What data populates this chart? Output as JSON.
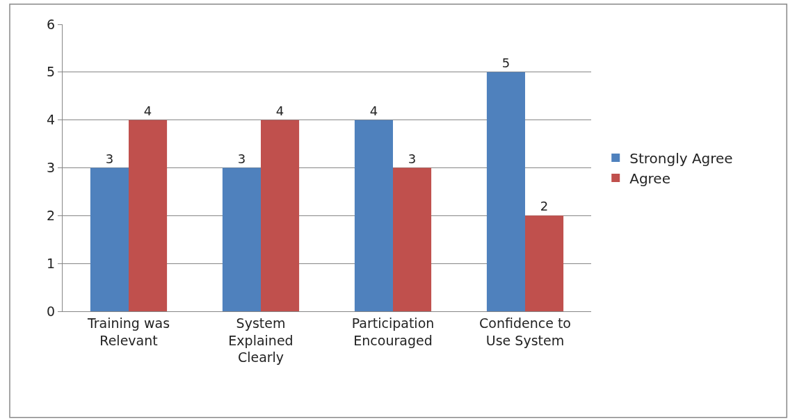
{
  "chart_data": {
    "type": "bar",
    "categories": [
      "Training was Relevant",
      "System Explained Clearly",
      "Participation Encouraged",
      "Confidence to Use System"
    ],
    "series": [
      {
        "name": "Strongly Agree",
        "color": "#4f81bd",
        "values": [
          3,
          3,
          4,
          5
        ]
      },
      {
        "name": "Agree",
        "color": "#c0504d",
        "values": [
          4,
          4,
          3,
          2
        ]
      }
    ],
    "ylim": [
      0,
      6
    ],
    "yticks": [
      0,
      1,
      2,
      3,
      4,
      5,
      6
    ],
    "grid": "y",
    "legend": "right",
    "data_labels": true
  }
}
